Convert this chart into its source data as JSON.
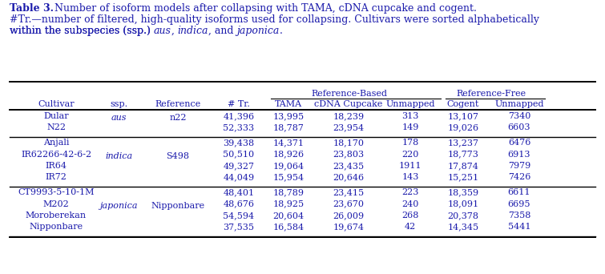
{
  "text_color": "#1a1aab",
  "bg_color": "#ffffff",
  "line_color": "#000000",
  "fs_cap": 9.0,
  "fs_tbl": 8.0,
  "groups": [
    {
      "cultivars": [
        "Dular",
        "N22"
      ],
      "ssp": "aus",
      "reference": "n22",
      "tr": [
        "41,396",
        "52,333"
      ],
      "tama": [
        "13,995",
        "18,787"
      ],
      "cdna": [
        "18,239",
        "23,954"
      ],
      "unmap1": [
        "313",
        "149"
      ],
      "cogent": [
        "13,107",
        "19,026"
      ],
      "unmap2": [
        "7340",
        "6603"
      ]
    },
    {
      "cultivars": [
        "Anjali",
        "IR62266-42-6-2",
        "IR64",
        "IR72"
      ],
      "ssp": "indica",
      "reference": "S498",
      "tr": [
        "39,438",
        "50,510",
        "49,327",
        "44,049"
      ],
      "tama": [
        "14,371",
        "18,926",
        "19,064",
        "15,954"
      ],
      "cdna": [
        "18,170",
        "23,803",
        "23,435",
        "20,646"
      ],
      "unmap1": [
        "178",
        "220",
        "1911",
        "143"
      ],
      "cogent": [
        "13,237",
        "18,773",
        "17,874",
        "15,251"
      ],
      "unmap2": [
        "6476",
        "6913",
        "7979",
        "7426"
      ]
    },
    {
      "cultivars": [
        "CT9993-5-10-1M",
        "M202",
        "Moroberekan",
        "Nipponbare"
      ],
      "ssp": "japonica",
      "reference": "Nipponbare",
      "tr": [
        "48,401",
        "48,676",
        "54,594",
        "37,535"
      ],
      "tama": [
        "18,789",
        "18,925",
        "20,604",
        "16,584"
      ],
      "cdna": [
        "23,415",
        "23,670",
        "26,009",
        "19,674"
      ],
      "unmap1": [
        "223",
        "240",
        "268",
        "42"
      ],
      "cogent": [
        "18,359",
        "18,091",
        "20,378",
        "14,345"
      ],
      "unmap2": [
        "6611",
        "6695",
        "7358",
        "5441"
      ]
    }
  ]
}
